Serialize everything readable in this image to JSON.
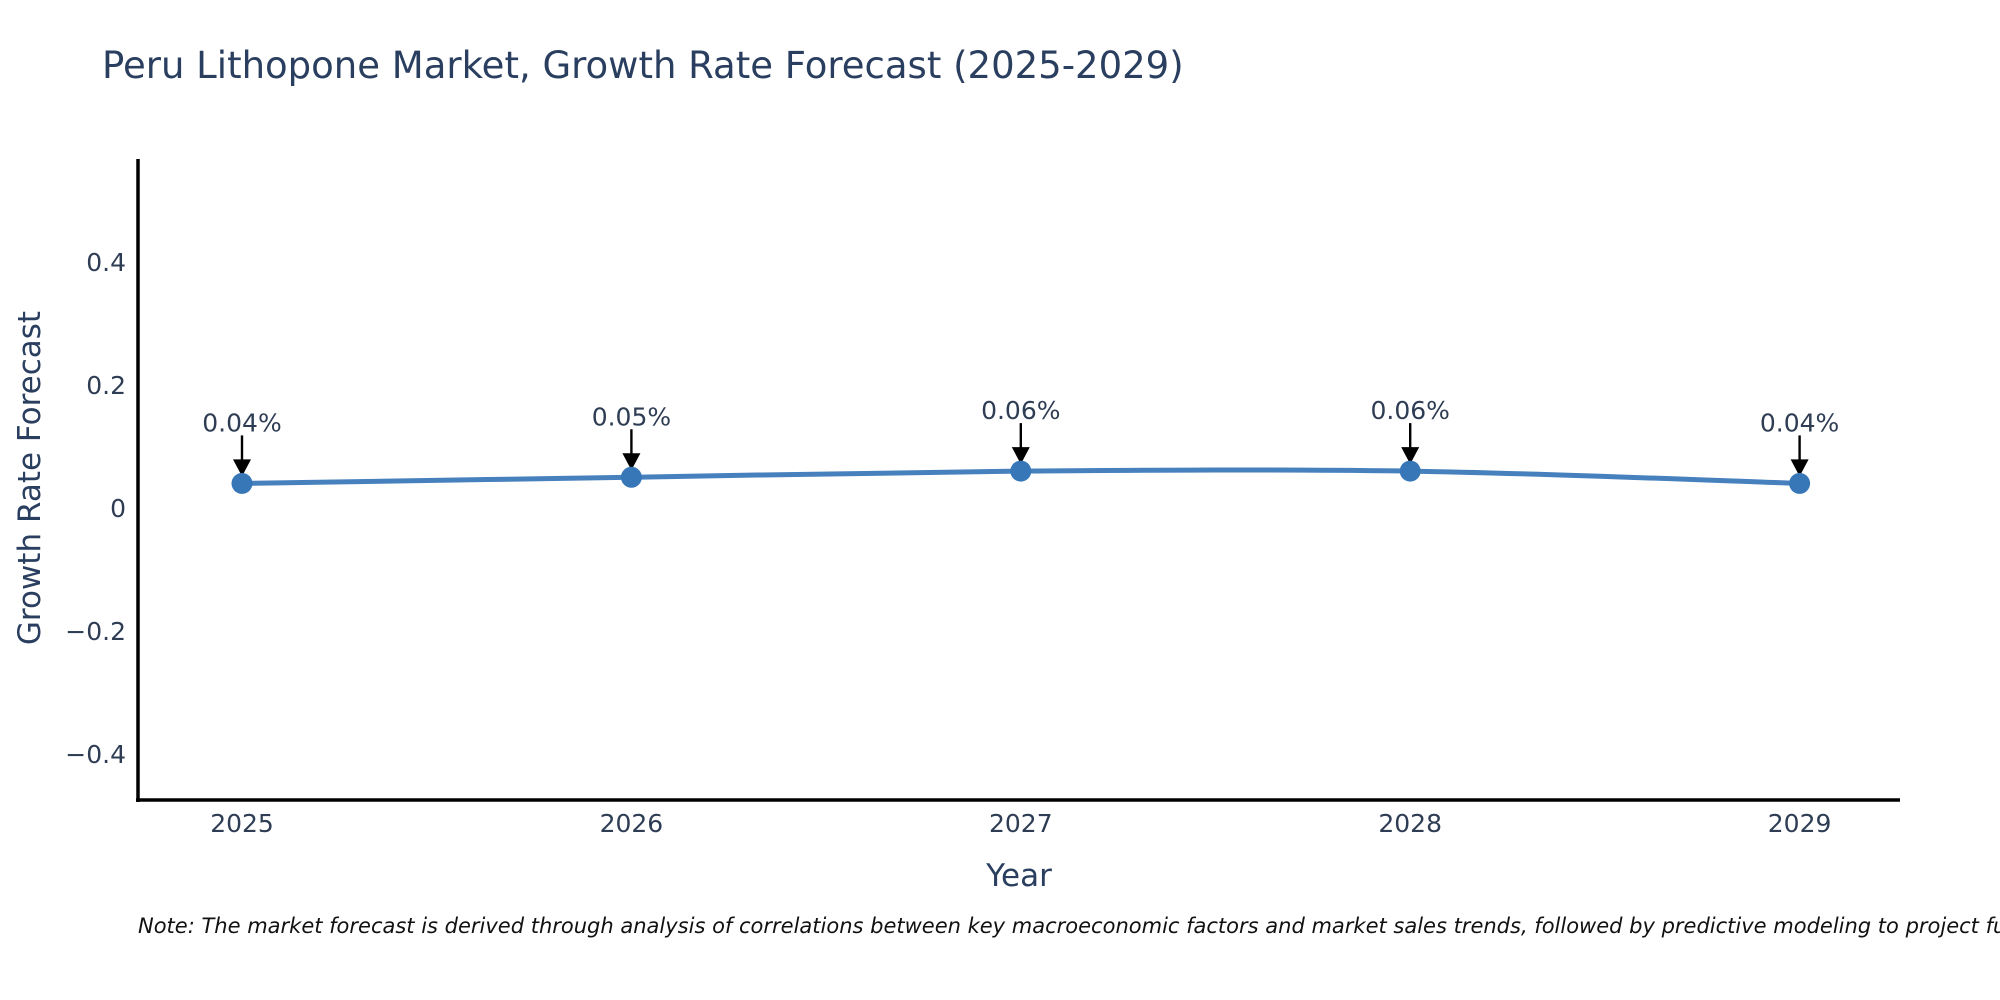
{
  "page": {
    "background": "#ffffff"
  },
  "chart_data": {
    "type": "line",
    "title": "Peru Lithopone Market, Growth Rate Forecast (2025-2029)",
    "xlabel": "Year",
    "ylabel": "Growth Rate Forecast",
    "categories": [
      2025,
      2026,
      2027,
      2028,
      2029
    ],
    "series": [
      {
        "name": "Growth Rate Forecast",
        "values": [
          0.04,
          0.05,
          0.06,
          0.06,
          0.04
        ]
      }
    ],
    "point_labels": [
      "0.04%",
      "0.05%",
      "0.06%",
      "0.06%",
      "0.04%"
    ],
    "yticks": [
      0.4,
      0.2,
      0,
      -0.2,
      -0.4
    ],
    "ylim": [
      -0.52,
      0.56
    ],
    "grid": false,
    "legend_position": "none",
    "line_shape": "spline",
    "colors": {
      "line": "#4681bd",
      "marker": "#3877b7",
      "axis": "#000000",
      "arrow": "#000000",
      "tick_text": "#2e3d54",
      "annotation_text": "#2e3d54",
      "title_text": "#2a3f5f"
    }
  },
  "note": {
    "text": "Note: The market forecast is derived through analysis of correlations between key macroeconomic factors and market sales trends, followed by predictive modeling to project future sa"
  }
}
